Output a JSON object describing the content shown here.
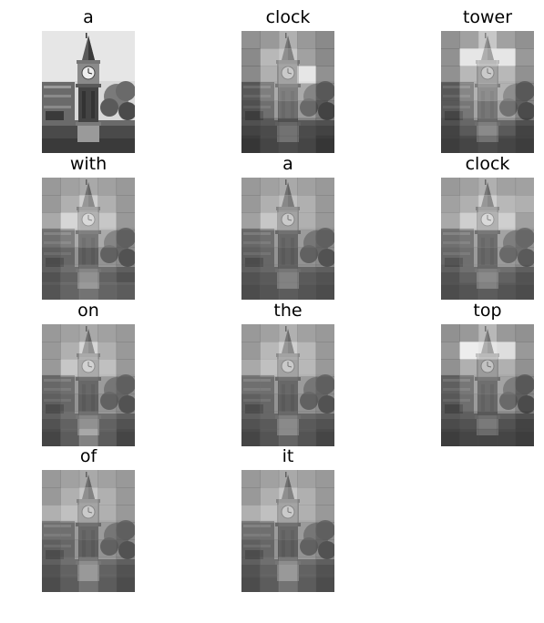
{
  "panels": [
    {
      "word": "a",
      "grid": null
    },
    {
      "word": "clock",
      "grid": [
        [
          0.35,
          0.4,
          0.55,
          0.4,
          0.3
        ],
        [
          0.3,
          0.6,
          0.7,
          0.45,
          0.3
        ],
        [
          0.3,
          0.55,
          0.7,
          0.9,
          0.35
        ],
        [
          0.3,
          0.55,
          0.65,
          0.55,
          0.3
        ],
        [
          0.25,
          0.45,
          0.55,
          0.45,
          0.25
        ],
        [
          0.25,
          0.3,
          0.35,
          0.3,
          0.25
        ],
        [
          0.2,
          0.3,
          0.35,
          0.3,
          0.2
        ]
      ]
    },
    {
      "word": "tower",
      "grid": [
        [
          0.35,
          0.45,
          0.7,
          0.45,
          0.35
        ],
        [
          0.35,
          0.9,
          0.9,
          0.9,
          0.4
        ],
        [
          0.35,
          0.6,
          0.7,
          0.6,
          0.35
        ],
        [
          0.3,
          0.6,
          0.75,
          0.6,
          0.3
        ],
        [
          0.3,
          0.5,
          0.6,
          0.5,
          0.3
        ],
        [
          0.25,
          0.4,
          0.5,
          0.4,
          0.25
        ],
        [
          0.25,
          0.3,
          0.35,
          0.3,
          0.25
        ]
      ]
    },
    {
      "word": "with",
      "grid": [
        [
          0.4,
          0.45,
          0.5,
          0.45,
          0.4
        ],
        [
          0.4,
          0.55,
          0.75,
          0.55,
          0.4
        ],
        [
          0.5,
          0.8,
          0.8,
          0.7,
          0.4
        ],
        [
          0.45,
          0.55,
          0.6,
          0.55,
          0.35
        ],
        [
          0.35,
          0.4,
          0.45,
          0.4,
          0.35
        ],
        [
          0.35,
          0.45,
          0.55,
          0.45,
          0.35
        ],
        [
          0.4,
          0.5,
          0.6,
          0.5,
          0.45
        ]
      ]
    },
    {
      "word": "a",
      "grid": [
        [
          0.4,
          0.45,
          0.5,
          0.45,
          0.4
        ],
        [
          0.4,
          0.55,
          0.65,
          0.55,
          0.4
        ],
        [
          0.45,
          0.7,
          0.7,
          0.55,
          0.4
        ],
        [
          0.4,
          0.45,
          0.5,
          0.45,
          0.35
        ],
        [
          0.35,
          0.4,
          0.45,
          0.4,
          0.35
        ],
        [
          0.35,
          0.4,
          0.45,
          0.4,
          0.35
        ],
        [
          0.35,
          0.4,
          0.45,
          0.4,
          0.35
        ]
      ]
    },
    {
      "word": "clock",
      "grid": [
        [
          0.4,
          0.45,
          0.55,
          0.45,
          0.45
        ],
        [
          0.45,
          0.55,
          0.75,
          0.6,
          0.55
        ],
        [
          0.5,
          0.75,
          0.8,
          0.75,
          0.45
        ],
        [
          0.45,
          0.5,
          0.55,
          0.5,
          0.4
        ],
        [
          0.4,
          0.45,
          0.5,
          0.45,
          0.4
        ],
        [
          0.35,
          0.45,
          0.5,
          0.45,
          0.35
        ],
        [
          0.35,
          0.4,
          0.45,
          0.4,
          0.35
        ]
      ]
    },
    {
      "word": "on",
      "grid": [
        [
          0.4,
          0.45,
          0.5,
          0.45,
          0.4
        ],
        [
          0.4,
          0.55,
          0.8,
          0.55,
          0.4
        ],
        [
          0.4,
          0.7,
          0.75,
          0.65,
          0.4
        ],
        [
          0.4,
          0.45,
          0.5,
          0.45,
          0.35
        ],
        [
          0.35,
          0.4,
          0.45,
          0.4,
          0.35
        ],
        [
          0.35,
          0.45,
          0.55,
          0.45,
          0.35
        ],
        [
          0.3,
          0.45,
          0.7,
          0.45,
          0.3
        ]
      ]
    },
    {
      "word": "the",
      "grid": [
        [
          0.4,
          0.45,
          0.55,
          0.45,
          0.4
        ],
        [
          0.4,
          0.6,
          0.75,
          0.6,
          0.4
        ],
        [
          0.5,
          0.65,
          0.7,
          0.6,
          0.4
        ],
        [
          0.45,
          0.45,
          0.5,
          0.45,
          0.35
        ],
        [
          0.35,
          0.4,
          0.45,
          0.4,
          0.35
        ],
        [
          0.35,
          0.4,
          0.5,
          0.4,
          0.35
        ],
        [
          0.3,
          0.4,
          0.5,
          0.4,
          0.3
        ]
      ]
    },
    {
      "word": "top",
      "grid": [
        [
          0.35,
          0.4,
          0.6,
          0.4,
          0.35
        ],
        [
          0.4,
          0.95,
          0.9,
          0.85,
          0.4
        ],
        [
          0.35,
          0.55,
          0.65,
          0.55,
          0.35
        ],
        [
          0.35,
          0.5,
          0.55,
          0.5,
          0.3
        ],
        [
          0.3,
          0.45,
          0.5,
          0.45,
          0.3
        ],
        [
          0.3,
          0.35,
          0.4,
          0.35,
          0.25
        ],
        [
          0.25,
          0.3,
          0.3,
          0.3,
          0.25
        ]
      ]
    },
    {
      "word": "of",
      "grid": [
        [
          0.4,
          0.45,
          0.5,
          0.45,
          0.4
        ],
        [
          0.4,
          0.55,
          0.7,
          0.55,
          0.4
        ],
        [
          0.55,
          0.65,
          0.7,
          0.55,
          0.4
        ],
        [
          0.45,
          0.45,
          0.5,
          0.45,
          0.35
        ],
        [
          0.35,
          0.4,
          0.45,
          0.4,
          0.35
        ],
        [
          0.35,
          0.45,
          0.6,
          0.45,
          0.35
        ],
        [
          0.35,
          0.45,
          0.6,
          0.45,
          0.35
        ]
      ]
    },
    {
      "word": "it",
      "grid": [
        [
          0.4,
          0.45,
          0.5,
          0.45,
          0.4
        ],
        [
          0.4,
          0.55,
          0.7,
          0.55,
          0.4
        ],
        [
          0.55,
          0.65,
          0.7,
          0.55,
          0.4
        ],
        [
          0.45,
          0.45,
          0.5,
          0.45,
          0.35
        ],
        [
          0.35,
          0.4,
          0.45,
          0.4,
          0.35
        ],
        [
          0.35,
          0.45,
          0.6,
          0.45,
          0.35
        ],
        [
          0.35,
          0.45,
          0.6,
          0.45,
          0.35
        ]
      ]
    }
  ]
}
